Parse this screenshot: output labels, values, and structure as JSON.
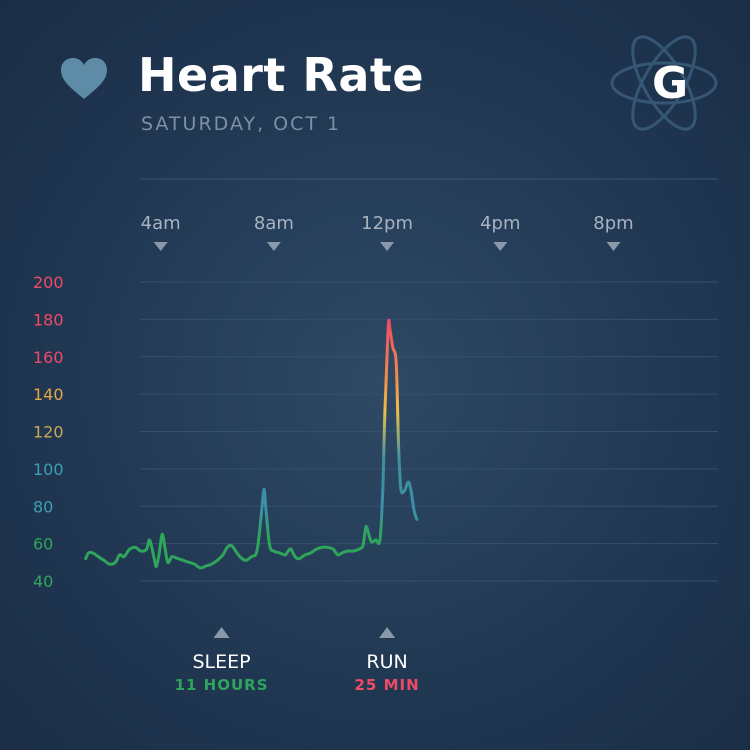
{
  "header": {
    "title": "Heart Rate",
    "date": "SATURDAY, OCT 1",
    "heart_icon": "heart-icon",
    "logo_letter": "G",
    "logo_icon": "atom-logo-icon"
  },
  "colors": {
    "background": "#1f3550",
    "green": "#2ea55a",
    "teal": "#3d8fa3",
    "yellow": "#e8c04a",
    "orange": "#f08a4a",
    "red": "#ef4a66",
    "heart": "#5e8ba6"
  },
  "chart_data": {
    "type": "line",
    "title": "Heart Rate",
    "x_unit": "hours since midnight",
    "x_range": [
      0.75,
      21.4
    ],
    "x_ticks": [
      {
        "label": "4am",
        "x": 4
      },
      {
        "label": "8am",
        "x": 8
      },
      {
        "label": "12pm",
        "x": 12
      },
      {
        "label": "4pm",
        "x": 16
      },
      {
        "label": "8pm",
        "x": 20
      }
    ],
    "ylim": [
      40,
      200
    ],
    "y_ticks": [
      {
        "label": "200",
        "value": 200,
        "color": "#ef4a66"
      },
      {
        "label": "180",
        "value": 180,
        "color": "#ef4a66"
      },
      {
        "label": "160",
        "value": 160,
        "color": "#ef4a66"
      },
      {
        "label": "140",
        "value": 140,
        "color": "#e3a74a"
      },
      {
        "label": "120",
        "value": 120,
        "color": "#c9a85a"
      },
      {
        "label": "100",
        "value": 100,
        "color": "#3d9fb3"
      },
      {
        "label": "80",
        "value": 80,
        "color": "#3d9fb3"
      },
      {
        "label": "60",
        "value": 60,
        "color": "#2ea55a"
      },
      {
        "label": "40",
        "value": 40,
        "color": "#2ea55a"
      }
    ],
    "grid": true,
    "series": [
      {
        "name": "heart rate",
        "points": [
          [
            1.35,
            52
          ],
          [
            1.45,
            55
          ],
          [
            1.6,
            55
          ],
          [
            1.8,
            53
          ],
          [
            2.0,
            51
          ],
          [
            2.2,
            49
          ],
          [
            2.4,
            50
          ],
          [
            2.55,
            54
          ],
          [
            2.7,
            53
          ],
          [
            2.9,
            57
          ],
          [
            3.1,
            58
          ],
          [
            3.3,
            56
          ],
          [
            3.5,
            57
          ],
          [
            3.6,
            62
          ],
          [
            3.7,
            57
          ],
          [
            3.8,
            50
          ],
          [
            3.85,
            48
          ],
          [
            3.95,
            55
          ],
          [
            4.05,
            65
          ],
          [
            4.15,
            58
          ],
          [
            4.25,
            50
          ],
          [
            4.4,
            53
          ],
          [
            4.6,
            52
          ],
          [
            4.8,
            51
          ],
          [
            5.0,
            50
          ],
          [
            5.2,
            49
          ],
          [
            5.4,
            47
          ],
          [
            5.6,
            48
          ],
          [
            5.8,
            49
          ],
          [
            6.0,
            51
          ],
          [
            6.2,
            54
          ],
          [
            6.35,
            58
          ],
          [
            6.5,
            59
          ],
          [
            6.65,
            56
          ],
          [
            6.8,
            53
          ],
          [
            7.0,
            51
          ],
          [
            7.2,
            53
          ],
          [
            7.4,
            56
          ],
          [
            7.55,
            75
          ],
          [
            7.65,
            89
          ],
          [
            7.72,
            78
          ],
          [
            7.85,
            59
          ],
          [
            8.0,
            56
          ],
          [
            8.2,
            55
          ],
          [
            8.4,
            54
          ],
          [
            8.5,
            56
          ],
          [
            8.6,
            57
          ],
          [
            8.75,
            53
          ],
          [
            8.9,
            52
          ],
          [
            9.1,
            54
          ],
          [
            9.3,
            55
          ],
          [
            9.5,
            57
          ],
          [
            9.7,
            58
          ],
          [
            9.9,
            58
          ],
          [
            10.1,
            57
          ],
          [
            10.25,
            54
          ],
          [
            10.4,
            55
          ],
          [
            10.6,
            56
          ],
          [
            10.8,
            56
          ],
          [
            11.0,
            57
          ],
          [
            11.15,
            59
          ],
          [
            11.25,
            69
          ],
          [
            11.35,
            65
          ],
          [
            11.45,
            61
          ],
          [
            11.6,
            62
          ],
          [
            11.75,
            62
          ],
          [
            11.85,
            90
          ],
          [
            11.9,
            120
          ],
          [
            11.97,
            150
          ],
          [
            12.05,
            178
          ],
          [
            12.1,
            175
          ],
          [
            12.2,
            165
          ],
          [
            12.32,
            157
          ],
          [
            12.4,
            115
          ],
          [
            12.48,
            90
          ],
          [
            12.6,
            88
          ],
          [
            12.75,
            93
          ],
          [
            12.85,
            88
          ],
          [
            12.95,
            78
          ],
          [
            13.05,
            73
          ]
        ]
      }
    ],
    "annotations": [
      {
        "label": "SLEEP",
        "sublabel": "11 HOURS",
        "x": 6.15,
        "sublabel_color": "#2ea55a"
      },
      {
        "label": "RUN",
        "sublabel": "25 MIN",
        "x": 12.0,
        "sublabel_color": "#ef4a66"
      }
    ]
  }
}
